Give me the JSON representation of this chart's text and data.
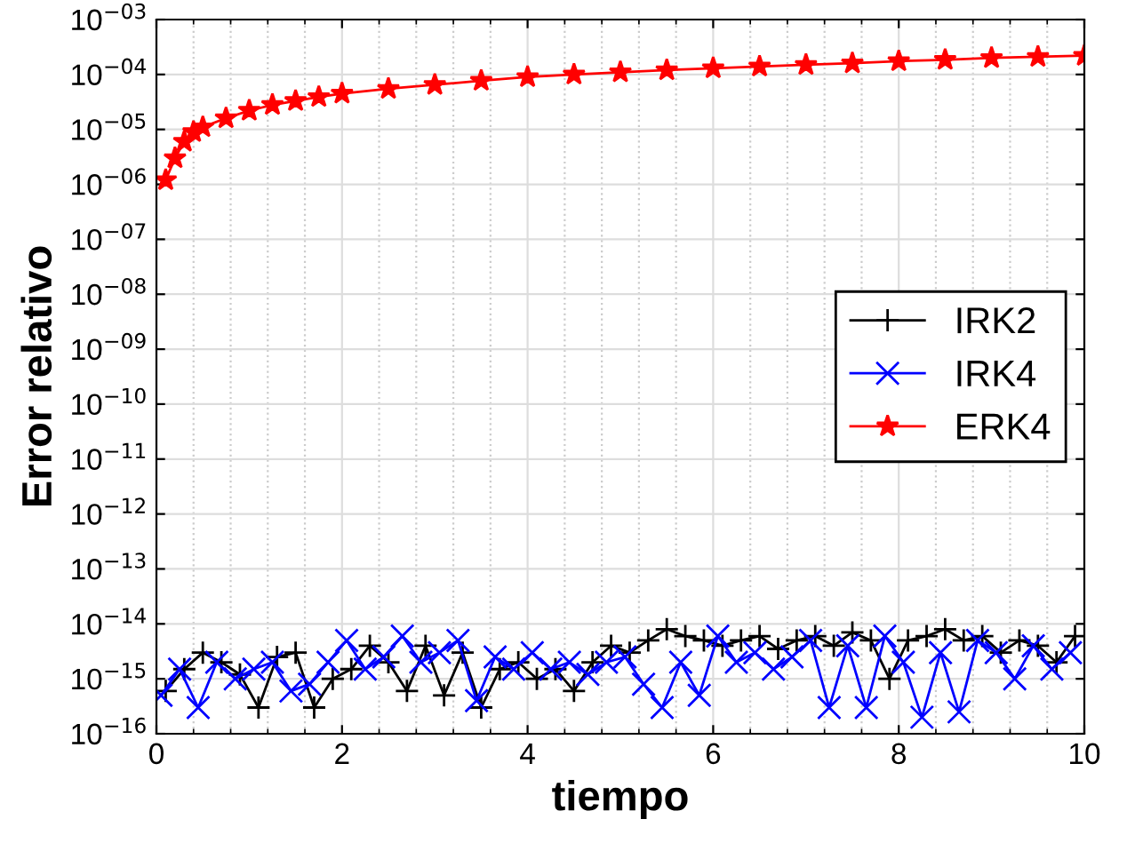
{
  "chart_data": {
    "type": "line",
    "xlabel": "tiempo",
    "ylabel": "Error relativo",
    "log": "y",
    "grid": true,
    "legend": "right",
    "xlim": [
      0,
      10
    ],
    "xticks": [
      0,
      2,
      4,
      6,
      8,
      10
    ],
    "ylim": [
      1e-16,
      0.001
    ],
    "yticks": [
      {
        "value": 1e-16,
        "label": "10$^{−16}$"
      },
      {
        "value": 1e-15,
        "label": "10$^{−15}$"
      },
      {
        "value": 1e-14,
        "label": "10$^{−14}$"
      },
      {
        "value": 1e-13,
        "label": "10$^{−13}$"
      },
      {
        "value": 1e-12,
        "label": "10$^{−12}$"
      },
      {
        "value": 1e-11,
        "label": "10$^{−11}$"
      },
      {
        "value": 1e-10,
        "label": "10$^{−10}$"
      },
      {
        "value": 1e-09,
        "label": "10$^{−09}$"
      },
      {
        "value": 1e-08,
        "label": "10$^{−08}$"
      },
      {
        "value": 1e-07,
        "label": "10$^{−07}$"
      },
      {
        "value": 1e-06,
        "label": "10$^{−06}$"
      },
      {
        "value": 1e-05,
        "label": "10$^{−05}$"
      },
      {
        "value": 0.0001,
        "label": "10$^{−04}$"
      },
      {
        "value": 0.001,
        "label": "10$^{−03}$"
      }
    ],
    "series": [
      {
        "name": "IRK2",
        "color": "#000000",
        "marker": "plus",
        "x": [
          0.1,
          0.3,
          0.5,
          0.7,
          0.9,
          1.1,
          1.3,
          1.5,
          1.7,
          1.9,
          2.1,
          2.3,
          2.5,
          2.7,
          2.9,
          3.1,
          3.3,
          3.5,
          3.7,
          3.9,
          4.1,
          4.3,
          4.5,
          4.7,
          4.9,
          5.1,
          5.3,
          5.5,
          5.7,
          5.9,
          6.1,
          6.3,
          6.5,
          6.7,
          6.9,
          7.1,
          7.3,
          7.5,
          7.7,
          7.9,
          8.1,
          8.3,
          8.5,
          8.7,
          8.9,
          9.1,
          9.3,
          9.5,
          9.7,
          9.9
        ],
        "values": [
          6e-16,
          1.5e-15,
          3e-15,
          2e-15,
          1.2e-15,
          3e-16,
          2.5e-15,
          3e-15,
          3e-16,
          1e-15,
          1.5e-15,
          4e-15,
          2e-15,
          6e-16,
          4e-15,
          5e-16,
          3e-15,
          3e-16,
          1.5e-15,
          2e-15,
          1e-15,
          1.5e-15,
          6e-16,
          2e-15,
          4e-15,
          3e-15,
          5e-15,
          8e-15,
          6e-15,
          5e-15,
          4e-15,
          5e-15,
          6e-15,
          3.5e-15,
          5e-15,
          6e-15,
          4e-15,
          7e-15,
          5e-15,
          1e-15,
          5e-15,
          6e-15,
          8e-15,
          5e-15,
          6e-15,
          3e-15,
          5e-15,
          4e-15,
          2e-15,
          6e-15
        ]
      },
      {
        "name": "IRK4",
        "color": "#0000ff",
        "marker": "cross",
        "x": [
          0.05,
          0.25,
          0.45,
          0.65,
          0.85,
          1.05,
          1.25,
          1.45,
          1.65,
          1.85,
          2.05,
          2.25,
          2.45,
          2.65,
          2.85,
          3.05,
          3.25,
          3.45,
          3.65,
          3.85,
          4.05,
          4.25,
          4.45,
          4.65,
          4.85,
          5.05,
          5.25,
          5.45,
          5.65,
          5.85,
          6.05,
          6.25,
          6.45,
          6.65,
          6.85,
          7.05,
          7.25,
          7.45,
          7.65,
          7.85,
          8.05,
          8.25,
          8.45,
          8.65,
          8.85,
          9.05,
          9.25,
          9.45,
          9.65,
          9.85
        ],
        "values": [
          5e-16,
          1.5e-15,
          3e-16,
          2e-15,
          1e-15,
          1.5e-15,
          2e-15,
          6e-16,
          8e-16,
          2e-15,
          5e-15,
          1.5e-15,
          2.5e-15,
          6e-15,
          2e-15,
          3e-15,
          5e-15,
          4e-16,
          2.5e-15,
          1.5e-15,
          3e-15,
          1.5e-15,
          2e-15,
          1.2e-15,
          2e-15,
          2.5e-15,
          8e-16,
          3e-16,
          2e-15,
          5e-16,
          6e-15,
          2e-15,
          3e-15,
          1.5e-15,
          2.5e-15,
          5e-15,
          3e-16,
          4e-15,
          3e-16,
          6e-15,
          2e-15,
          2e-16,
          3e-15,
          2.5e-16,
          5e-15,
          3e-15,
          1e-15,
          4e-15,
          1.5e-15,
          3e-15
        ]
      },
      {
        "name": "ERK4",
        "color": "#ff0000",
        "marker": "star",
        "x": [
          0.1,
          0.2,
          0.3,
          0.4,
          0.5,
          0.75,
          1,
          1.25,
          1.5,
          1.75,
          2,
          2.5,
          3,
          3.5,
          4,
          4.5,
          5,
          5.5,
          6,
          6.5,
          7,
          7.5,
          8,
          8.5,
          9,
          9.5,
          10
        ],
        "values": [
          1.2e-06,
          3e-06,
          6e-06,
          9e-06,
          1.1e-05,
          1.6e-05,
          2.2e-05,
          2.8e-05,
          3.3e-05,
          3.9e-05,
          4.5e-05,
          5.5e-05,
          6.5e-05,
          7.7e-05,
          9e-05,
          0.0001,
          0.00011,
          0.00012,
          0.00013,
          0.00014,
          0.00015,
          0.00016,
          0.000175,
          0.000185,
          0.0002,
          0.00021,
          0.00022
        ]
      }
    ]
  }
}
